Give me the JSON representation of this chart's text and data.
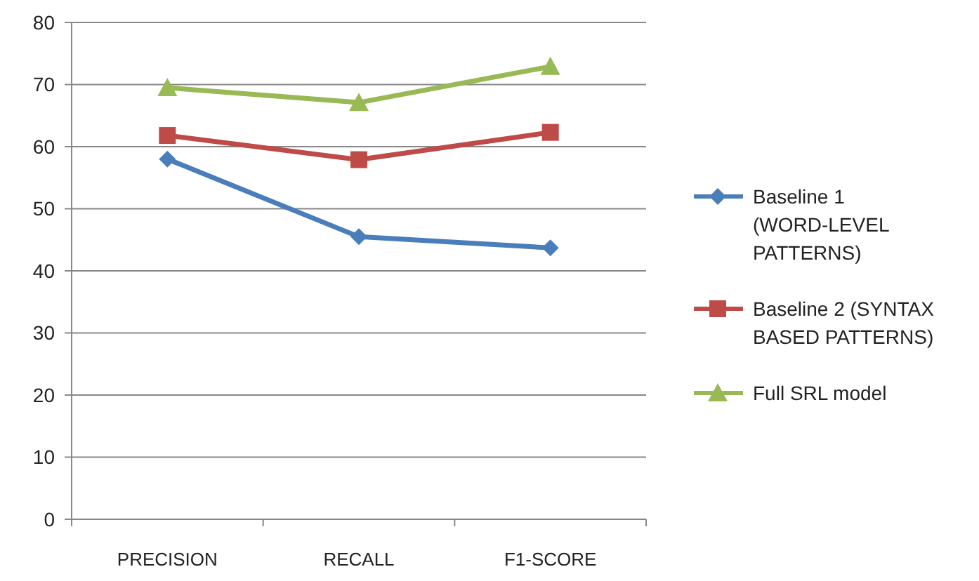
{
  "chart_data": {
    "type": "line",
    "categories": [
      "PRECISION",
      "RECALL",
      "F1-SCORE"
    ],
    "series": [
      {
        "name": "Baseline 1 (WORD-LEVEL PATTERNS)",
        "color": "#4a7ebb",
        "values": [
          58,
          45.5,
          43.7
        ],
        "marker": "diamond"
      },
      {
        "name": "Baseline 2 (SYNTAX BASED PATTERNS)",
        "color": "#be4b48",
        "values": [
          61.8,
          57.9,
          62.3
        ],
        "marker": "square"
      },
      {
        "name": "Full SRL model",
        "color": "#98b954",
        "values": [
          69.5,
          67.1,
          72.9
        ],
        "marker": "triangle"
      }
    ],
    "ylim": [
      0,
      80
    ],
    "yticks": [
      0,
      10,
      20,
      30,
      40,
      50,
      60,
      70,
      80
    ],
    "grid": "y",
    "legend": "right"
  }
}
